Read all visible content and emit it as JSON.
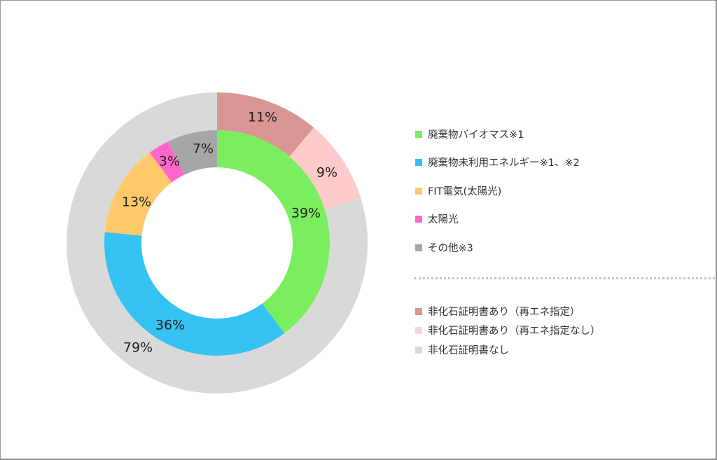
{
  "chart_data": {
    "type": "pie",
    "subtype": "nested-donut",
    "title": "",
    "rings": [
      {
        "name": "inner",
        "series": [
          {
            "label": "廃棄物バイオマス※1",
            "value": 39,
            "display": "39%",
            "color": "#7BEE5F"
          },
          {
            "label": "廃棄物未利用エネルギー※1、※2",
            "value": 36,
            "display": "36%",
            "color": "#35C2F3"
          },
          {
            "label": "FIT電気(太陽光)",
            "value": 13,
            "display": "13%",
            "color": "#FFC96B"
          },
          {
            "label": "太陽光",
            "value": 3,
            "display": "3%",
            "color": "#FF66CC"
          },
          {
            "label": "その他※3",
            "value": 7,
            "display": "7%",
            "color": "#A6A6A6"
          }
        ]
      },
      {
        "name": "outer",
        "series": [
          {
            "label": "非化石証明書あり（再エネ指定）",
            "value": 11,
            "display": "11%",
            "color": "#D99694"
          },
          {
            "label": "非化石証明書あり（再エネ指定なし）",
            "value": 9,
            "display": "9%",
            "color": "#FFCACA"
          },
          {
            "label": "非化石証明書なし",
            "value": 79,
            "display": "79%",
            "color": "#D9D9D9"
          }
        ]
      }
    ],
    "start_angle_deg": 0,
    "direction": "clockwise",
    "legend_position": "right"
  },
  "legend": {
    "top_group": [
      {
        "label": "廃棄物バイオマス※1",
        "color": "#7BEE5F"
      },
      {
        "label": "廃棄物未利用エネルギー※1、※2",
        "color": "#35C2F3"
      },
      {
        "label": "FIT電気(太陽光)",
        "color": "#FFC96B"
      },
      {
        "label": "太陽光",
        "color": "#FF66CC"
      },
      {
        "label": "その他※3",
        "color": "#A6A6A6"
      }
    ],
    "bottom_group": [
      {
        "label": "非化石証明書あり（再エネ指定）",
        "color": "#D99694"
      },
      {
        "label": "非化石証明書あり（再エネ指定なし）",
        "color": "#F4D7D7"
      },
      {
        "label": "非化石証明書なし",
        "color": "#D9D9D9"
      }
    ]
  }
}
